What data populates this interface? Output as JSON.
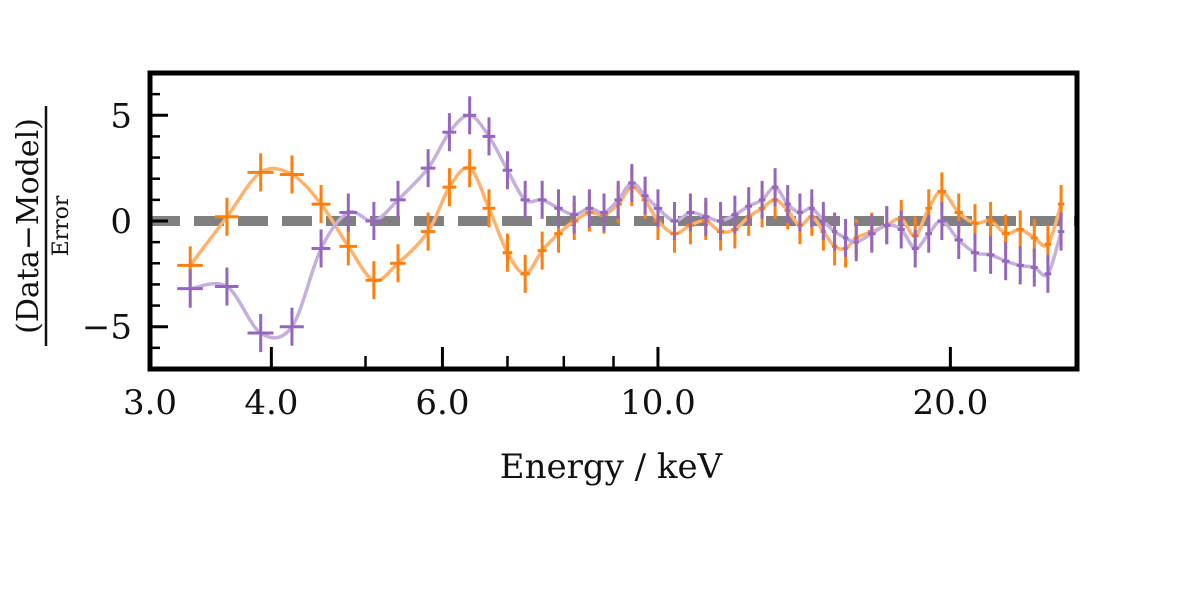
{
  "chart_data": {
    "type": "scatter",
    "title": "",
    "xlabel": "Energy / keV",
    "ylabel": {
      "numerator": "(Data−Model)",
      "denominator": "Error"
    },
    "xscale": "log",
    "xlim": [
      3.0,
      27.0
    ],
    "ylim": [
      -7.0,
      7.0
    ],
    "x_ticks": [
      3.0,
      4.0,
      6.0,
      10.0,
      20.0
    ],
    "x_tick_labels": [
      "3.0",
      "4.0",
      "6.0",
      "10.0",
      "20.0"
    ],
    "y_ticks": [
      -5,
      0,
      5
    ],
    "y_tick_labels": [
      "−5",
      "0",
      "5"
    ],
    "reference_line": 0,
    "colors": {
      "orange": "#ff7f0e",
      "orange_line": "#ffb26e",
      "purple": "#9467bd",
      "purple_line": "#c5b0dd",
      "reference": "#808080"
    },
    "series": [
      {
        "name": "orange",
        "points": [
          {
            "x": 3.3,
            "y": -2.1,
            "xerr": 0.1,
            "yerr": 0.9
          },
          {
            "x": 3.6,
            "y": 0.2,
            "xerr": 0.1,
            "yerr": 0.9
          },
          {
            "x": 3.9,
            "y": 2.3,
            "xerr": 0.12,
            "yerr": 0.9
          },
          {
            "x": 4.2,
            "y": 2.2,
            "xerr": 0.12,
            "yerr": 0.9
          },
          {
            "x": 4.5,
            "y": 0.8,
            "xerr": 0.1,
            "yerr": 0.9
          },
          {
            "x": 4.8,
            "y": -1.2,
            "xerr": 0.1,
            "yerr": 0.9
          },
          {
            "x": 5.1,
            "y": -2.8,
            "xerr": 0.1,
            "yerr": 0.9
          },
          {
            "x": 5.4,
            "y": -2.0,
            "xerr": 0.1,
            "yerr": 0.9
          },
          {
            "x": 5.8,
            "y": -0.5,
            "xerr": 0.1,
            "yerr": 0.9
          },
          {
            "x": 6.1,
            "y": 1.6,
            "xerr": 0.1,
            "yerr": 0.9
          },
          {
            "x": 6.4,
            "y": 2.5,
            "xerr": 0.1,
            "yerr": 0.9
          },
          {
            "x": 6.7,
            "y": 0.6,
            "xerr": 0.1,
            "yerr": 0.9
          },
          {
            "x": 7.0,
            "y": -1.5,
            "xerr": 0.08,
            "yerr": 0.9
          },
          {
            "x": 7.3,
            "y": -2.5,
            "xerr": 0.08,
            "yerr": 0.9
          },
          {
            "x": 7.6,
            "y": -1.4,
            "xerr": 0.08,
            "yerr": 0.9
          },
          {
            "x": 7.9,
            "y": -0.6,
            "xerr": 0.08,
            "yerr": 0.9
          },
          {
            "x": 8.2,
            "y": 0.0,
            "xerr": 0.08,
            "yerr": 0.9
          },
          {
            "x": 8.5,
            "y": 0.4,
            "xerr": 0.08,
            "yerr": 0.9
          },
          {
            "x": 8.8,
            "y": 0.3,
            "xerr": 0.08,
            "yerr": 0.9
          },
          {
            "x": 9.1,
            "y": 0.8,
            "xerr": 0.08,
            "yerr": 0.9
          },
          {
            "x": 9.4,
            "y": 1.6,
            "xerr": 0.08,
            "yerr": 0.9
          },
          {
            "x": 9.7,
            "y": 1.0,
            "xerr": 0.08,
            "yerr": 0.9
          },
          {
            "x": 10.0,
            "y": 0.0,
            "xerr": 0.1,
            "yerr": 0.9
          },
          {
            "x": 10.4,
            "y": -0.6,
            "xerr": 0.1,
            "yerr": 0.9
          },
          {
            "x": 10.8,
            "y": -0.2,
            "xerr": 0.1,
            "yerr": 0.9
          },
          {
            "x": 11.2,
            "y": 0.0,
            "xerr": 0.1,
            "yerr": 0.9
          },
          {
            "x": 11.6,
            "y": -0.5,
            "xerr": 0.1,
            "yerr": 0.9
          },
          {
            "x": 12.0,
            "y": -0.4,
            "xerr": 0.1,
            "yerr": 0.9
          },
          {
            "x": 12.4,
            "y": 0.2,
            "xerr": 0.1,
            "yerr": 0.9
          },
          {
            "x": 12.8,
            "y": 0.6,
            "xerr": 0.1,
            "yerr": 0.9
          },
          {
            "x": 13.2,
            "y": 1.0,
            "xerr": 0.1,
            "yerr": 0.9
          },
          {
            "x": 13.6,
            "y": 0.5,
            "xerr": 0.1,
            "yerr": 0.9
          },
          {
            "x": 14.0,
            "y": -0.2,
            "xerr": 0.1,
            "yerr": 0.9
          },
          {
            "x": 14.4,
            "y": 0.2,
            "xerr": 0.1,
            "yerr": 0.9
          },
          {
            "x": 14.8,
            "y": -0.5,
            "xerr": 0.1,
            "yerr": 0.9
          },
          {
            "x": 15.2,
            "y": -1.2,
            "xerr": 0.1,
            "yerr": 0.9
          },
          {
            "x": 15.6,
            "y": -1.3,
            "xerr": 0.1,
            "yerr": 0.9
          },
          {
            "x": 16.0,
            "y": -0.8,
            "xerr": 0.1,
            "yerr": 0.9
          },
          {
            "x": 16.6,
            "y": -0.5,
            "xerr": 0.15,
            "yerr": 0.9
          },
          {
            "x": 17.2,
            "y": -0.2,
            "xerr": 0.15,
            "yerr": 0.9
          },
          {
            "x": 17.8,
            "y": 0.1,
            "xerr": 0.15,
            "yerr": 0.9
          },
          {
            "x": 18.4,
            "y": -0.7,
            "xerr": 0.15,
            "yerr": 0.9
          },
          {
            "x": 19.0,
            "y": 0.6,
            "xerr": 0.15,
            "yerr": 0.9
          },
          {
            "x": 19.6,
            "y": 1.4,
            "xerr": 0.2,
            "yerr": 0.9
          },
          {
            "x": 20.4,
            "y": 0.4,
            "xerr": 0.2,
            "yerr": 0.9
          },
          {
            "x": 21.2,
            "y": -0.1,
            "xerr": 0.2,
            "yerr": 0.9
          },
          {
            "x": 22.0,
            "y": 0.0,
            "xerr": 0.2,
            "yerr": 0.9
          },
          {
            "x": 22.8,
            "y": -0.6,
            "xerr": 0.2,
            "yerr": 0.9
          },
          {
            "x": 23.6,
            "y": -0.4,
            "xerr": 0.2,
            "yerr": 0.9
          },
          {
            "x": 24.4,
            "y": -0.8,
            "xerr": 0.2,
            "yerr": 0.9
          },
          {
            "x": 25.2,
            "y": -1.1,
            "xerr": 0.2,
            "yerr": 0.9
          },
          {
            "x": 26.0,
            "y": 0.8,
            "xerr": 0.2,
            "yerr": 0.9
          }
        ]
      },
      {
        "name": "purple",
        "points": [
          {
            "x": 3.3,
            "y": -3.2,
            "xerr": 0.1,
            "yerr": 0.9
          },
          {
            "x": 3.6,
            "y": -3.1,
            "xerr": 0.1,
            "yerr": 0.9
          },
          {
            "x": 3.9,
            "y": -5.3,
            "xerr": 0.12,
            "yerr": 0.9
          },
          {
            "x": 4.2,
            "y": -5.0,
            "xerr": 0.12,
            "yerr": 0.9
          },
          {
            "x": 4.5,
            "y": -1.3,
            "xerr": 0.1,
            "yerr": 0.9
          },
          {
            "x": 4.8,
            "y": 0.4,
            "xerr": 0.1,
            "yerr": 0.9
          },
          {
            "x": 5.1,
            "y": 0.0,
            "xerr": 0.1,
            "yerr": 0.9
          },
          {
            "x": 5.4,
            "y": 1.0,
            "xerr": 0.1,
            "yerr": 0.9
          },
          {
            "x": 5.8,
            "y": 2.5,
            "xerr": 0.1,
            "yerr": 0.9
          },
          {
            "x": 6.1,
            "y": 4.2,
            "xerr": 0.1,
            "yerr": 0.9
          },
          {
            "x": 6.4,
            "y": 5.0,
            "xerr": 0.1,
            "yerr": 0.9
          },
          {
            "x": 6.7,
            "y": 4.0,
            "xerr": 0.1,
            "yerr": 0.9
          },
          {
            "x": 7.0,
            "y": 2.4,
            "xerr": 0.08,
            "yerr": 0.9
          },
          {
            "x": 7.3,
            "y": 1.0,
            "xerr": 0.08,
            "yerr": 0.9
          },
          {
            "x": 7.6,
            "y": 1.0,
            "xerr": 0.08,
            "yerr": 0.9
          },
          {
            "x": 7.9,
            "y": 0.6,
            "xerr": 0.08,
            "yerr": 0.9
          },
          {
            "x": 8.2,
            "y": 0.3,
            "xerr": 0.08,
            "yerr": 0.9
          },
          {
            "x": 8.5,
            "y": 0.6,
            "xerr": 0.08,
            "yerr": 0.9
          },
          {
            "x": 8.8,
            "y": 0.4,
            "xerr": 0.08,
            "yerr": 0.9
          },
          {
            "x": 9.1,
            "y": 1.0,
            "xerr": 0.08,
            "yerr": 0.9
          },
          {
            "x": 9.4,
            "y": 1.8,
            "xerr": 0.08,
            "yerr": 0.9
          },
          {
            "x": 9.7,
            "y": 1.2,
            "xerr": 0.08,
            "yerr": 0.9
          },
          {
            "x": 10.0,
            "y": 0.6,
            "xerr": 0.1,
            "yerr": 0.9
          },
          {
            "x": 10.4,
            "y": 0.0,
            "xerr": 0.1,
            "yerr": 0.9
          },
          {
            "x": 10.8,
            "y": 0.4,
            "xerr": 0.1,
            "yerr": 0.9
          },
          {
            "x": 11.2,
            "y": 0.2,
            "xerr": 0.1,
            "yerr": 0.9
          },
          {
            "x": 11.6,
            "y": 0.0,
            "xerr": 0.1,
            "yerr": 0.9
          },
          {
            "x": 12.0,
            "y": 0.3,
            "xerr": 0.1,
            "yerr": 0.9
          },
          {
            "x": 12.4,
            "y": 0.7,
            "xerr": 0.1,
            "yerr": 0.9
          },
          {
            "x": 12.8,
            "y": 1.0,
            "xerr": 0.1,
            "yerr": 0.9
          },
          {
            "x": 13.2,
            "y": 1.6,
            "xerr": 0.1,
            "yerr": 0.9
          },
          {
            "x": 13.6,
            "y": 0.8,
            "xerr": 0.1,
            "yerr": 0.9
          },
          {
            "x": 14.0,
            "y": 0.4,
            "xerr": 0.1,
            "yerr": 0.9
          },
          {
            "x": 14.4,
            "y": 0.6,
            "xerr": 0.1,
            "yerr": 0.9
          },
          {
            "x": 14.8,
            "y": 0.0,
            "xerr": 0.1,
            "yerr": 0.9
          },
          {
            "x": 15.2,
            "y": -0.5,
            "xerr": 0.1,
            "yerr": 0.9
          },
          {
            "x": 15.6,
            "y": -0.8,
            "xerr": 0.1,
            "yerr": 0.9
          },
          {
            "x": 16.0,
            "y": -1.0,
            "xerr": 0.1,
            "yerr": 0.9
          },
          {
            "x": 16.6,
            "y": -0.6,
            "xerr": 0.15,
            "yerr": 0.9
          },
          {
            "x": 17.2,
            "y": -0.2,
            "xerr": 0.15,
            "yerr": 0.9
          },
          {
            "x": 17.8,
            "y": -0.4,
            "xerr": 0.15,
            "yerr": 0.9
          },
          {
            "x": 18.4,
            "y": -1.3,
            "xerr": 0.15,
            "yerr": 0.9
          },
          {
            "x": 19.0,
            "y": -0.6,
            "xerr": 0.15,
            "yerr": 0.9
          },
          {
            "x": 19.6,
            "y": 0.0,
            "xerr": 0.2,
            "yerr": 0.9
          },
          {
            "x": 20.4,
            "y": -0.9,
            "xerr": 0.2,
            "yerr": 0.9
          },
          {
            "x": 21.2,
            "y": -1.5,
            "xerr": 0.2,
            "yerr": 0.9
          },
          {
            "x": 22.0,
            "y": -1.6,
            "xerr": 0.2,
            "yerr": 0.9
          },
          {
            "x": 22.8,
            "y": -1.9,
            "xerr": 0.2,
            "yerr": 0.9
          },
          {
            "x": 23.6,
            "y": -2.1,
            "xerr": 0.2,
            "yerr": 0.9
          },
          {
            "x": 24.4,
            "y": -2.2,
            "xerr": 0.2,
            "yerr": 0.9
          },
          {
            "x": 25.2,
            "y": -2.5,
            "xerr": 0.2,
            "yerr": 0.9
          },
          {
            "x": 26.0,
            "y": -0.5,
            "xerr": 0.2,
            "yerr": 0.9
          }
        ]
      }
    ]
  }
}
